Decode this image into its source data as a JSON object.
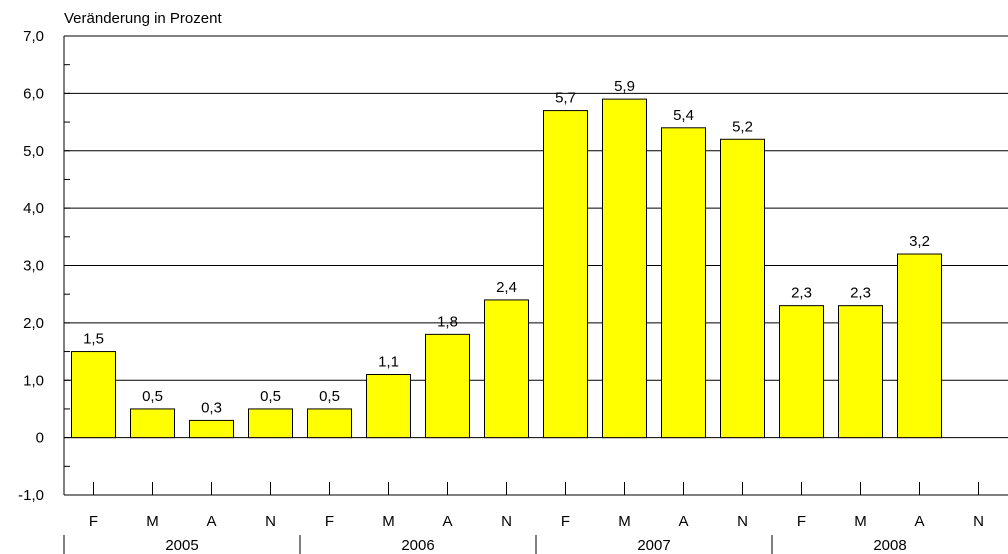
{
  "chart_data": {
    "type": "bar",
    "ylabel": "Veränderung in Prozent",
    "ylim": [
      -1,
      7
    ],
    "yticks": [
      -1,
      0,
      1,
      2,
      3,
      4,
      5,
      6,
      7
    ],
    "ytick_labels": [
      "-1,0",
      "0",
      "1,0",
      "2,0",
      "3,0",
      "4,0",
      "5,0",
      "6,0",
      "7,0"
    ],
    "grid": true,
    "categories": [
      "F",
      "M",
      "A",
      "N",
      "F",
      "M",
      "A",
      "N",
      "F",
      "M",
      "A",
      "N",
      "F",
      "M",
      "A",
      "N"
    ],
    "values": [
      1.5,
      0.5,
      0.3,
      0.5,
      0.5,
      1.1,
      1.8,
      2.4,
      5.7,
      5.9,
      5.4,
      5.2,
      2.3,
      2.3,
      3.2,
      null
    ],
    "value_labels": [
      "1,5",
      "0,5",
      "0,3",
      "0,5",
      "0,5",
      "1,1",
      "1,8",
      "2,4",
      "5,7",
      "5,9",
      "5,4",
      "5,2",
      "2,3",
      "2,3",
      "3,2",
      ""
    ],
    "groups": [
      "2005",
      "2006",
      "2007",
      "2008"
    ],
    "group_size": 4,
    "bar_color": "#ffff00",
    "bar_edge_color": "#000000"
  }
}
